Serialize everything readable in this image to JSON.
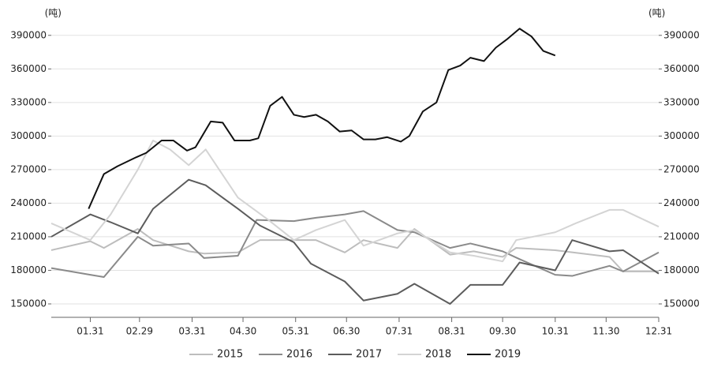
{
  "chart_data": {
    "type": "line",
    "ylabel": "(吨)",
    "y2label": "(吨)",
    "xlim": [
      8,
      366
    ],
    "xticks": [
      {
        "value": 31,
        "label": "01.31"
      },
      {
        "value": 60,
        "label": "02.29"
      },
      {
        "value": 91,
        "label": "03.31"
      },
      {
        "value": 121,
        "label": "04.30"
      },
      {
        "value": 152,
        "label": "05.31"
      },
      {
        "value": 182,
        "label": "06.30"
      },
      {
        "value": 213,
        "label": "07.31"
      },
      {
        "value": 244,
        "label": "08.31"
      },
      {
        "value": 274,
        "label": "09.30"
      },
      {
        "value": 305,
        "label": "10.31"
      },
      {
        "value": 335,
        "label": "11.30"
      },
      {
        "value": 366,
        "label": "12.31"
      }
    ],
    "ylim": [
      138000,
      411000
    ],
    "yticks": [
      150000,
      180000,
      210000,
      240000,
      270000,
      300000,
      330000,
      360000,
      390000
    ],
    "y2lim": [
      138000,
      411000
    ],
    "y2ticks": [
      150000,
      180000,
      210000,
      240000,
      270000,
      300000,
      330000,
      360000,
      390000
    ],
    "grid": true,
    "legend": "bottom",
    "series": [
      {
        "name": "2015",
        "color": "#bdbdbd",
        "x": [
          8,
          31,
          39,
          59,
          68,
          89,
          98,
          118,
          131,
          151,
          164,
          181,
          192,
          212,
          222,
          243,
          257,
          274,
          282,
          305,
          337,
          345,
          366
        ],
        "values": [
          198000,
          206000,
          200000,
          217000,
          207000,
          197000,
          195000,
          196000,
          207000,
          207000,
          207000,
          196000,
          207000,
          200000,
          217000,
          194000,
          197000,
          192000,
          200000,
          198000,
          192000,
          179000,
          179000
        ]
      },
      {
        "name": "2016",
        "color": "#8a8a8a",
        "x": [
          8,
          31,
          39,
          59,
          68,
          89,
          98,
          118,
          129,
          151,
          164,
          181,
          192,
          212,
          222,
          243,
          255,
          274,
          284,
          305,
          315,
          337,
          345,
          366
        ],
        "values": [
          182000,
          176000,
          174000,
          210000,
          202000,
          204000,
          191000,
          193000,
          225000,
          224000,
          227000,
          230000,
          233000,
          216000,
          214000,
          200000,
          204000,
          197000,
          190000,
          176000,
          175000,
          184000,
          179000,
          196000
        ]
      },
      {
        "name": "2017",
        "color": "#5c5c5c",
        "x": [
          8,
          31,
          43,
          59,
          68,
          89,
          99,
          118,
          131,
          151,
          161,
          181,
          192,
          212,
          222,
          243,
          255,
          274,
          284,
          305,
          315,
          337,
          345,
          366
        ],
        "values": [
          210000,
          230000,
          223000,
          213000,
          235000,
          261000,
          256000,
          235000,
          220000,
          205000,
          186000,
          170000,
          153000,
          159000,
          168000,
          150000,
          167000,
          167000,
          187000,
          180000,
          207000,
          197000,
          198000,
          177000
        ]
      },
      {
        "name": "2018",
        "color": "#d4d4d4",
        "x": [
          8,
          31,
          43,
          59,
          68,
          78,
          89,
          99,
          118,
          136,
          151,
          164,
          181,
          192,
          212,
          222,
          243,
          257,
          274,
          282,
          305,
          317,
          337,
          345,
          366
        ],
        "values": [
          222000,
          207000,
          230000,
          270000,
          296000,
          288000,
          274000,
          288000,
          245000,
          225000,
          207000,
          216000,
          225000,
          202000,
          213000,
          216000,
          196000,
          193000,
          188000,
          207000,
          214000,
          222000,
          234000,
          234000,
          219000
        ]
      },
      {
        "name": "2019",
        "color": "#111111",
        "x": [
          30,
          39,
          47,
          58,
          64,
          73,
          80,
          88,
          93,
          102,
          109,
          116,
          125,
          130,
          137,
          144,
          151,
          157,
          164,
          171,
          178,
          185,
          192,
          199,
          206,
          214,
          219,
          227,
          235,
          242,
          249,
          255,
          263,
          270,
          277,
          284,
          291,
          298,
          305
        ],
        "values": [
          235000,
          266000,
          273000,
          281000,
          285000,
          296000,
          296000,
          287000,
          290000,
          313000,
          312000,
          296000,
          296000,
          298000,
          327000,
          335000,
          319000,
          317000,
          319000,
          313000,
          304000,
          305000,
          297000,
          297000,
          299000,
          295000,
          300000,
          322000,
          330000,
          359000,
          363000,
          370000,
          367000,
          379000,
          387000,
          396000,
          389000,
          376000,
          372000
        ]
      }
    ]
  }
}
